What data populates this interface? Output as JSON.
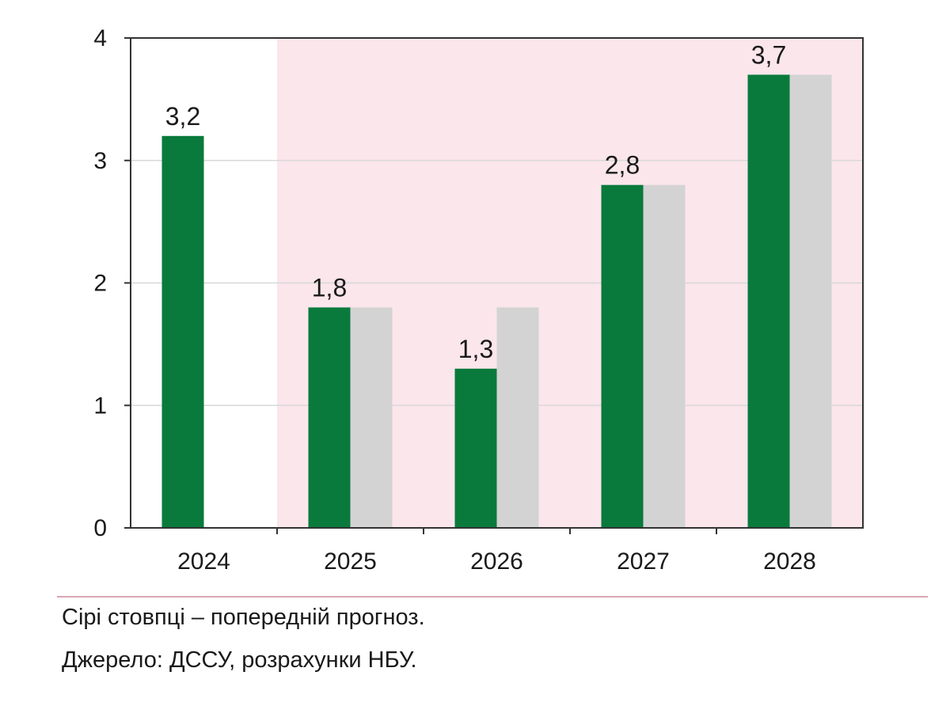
{
  "chart_data": {
    "type": "bar",
    "categories": [
      "2024",
      "2025",
      "2026",
      "2027",
      "2028"
    ],
    "series": [
      {
        "values": [
          3.2,
          1.8,
          1.3,
          2.8,
          3.7
        ],
        "color": "#0a7a3c"
      },
      {
        "values": [
          null,
          1.8,
          1.8,
          2.8,
          3.7
        ],
        "color": "#d3d3d3"
      }
    ],
    "data_labels": [
      "3,2",
      "1,8",
      "1,3",
      "2,8",
      "3,7"
    ],
    "ylim": [
      0,
      4
    ],
    "yticks": [
      "0",
      "1",
      "2",
      "3",
      "4"
    ],
    "forecast_shading": {
      "from_category": "2025",
      "to_category": "2028",
      "color": "#fbe6ec"
    },
    "grid": true,
    "xlabel": "",
    "ylabel": "",
    "title": ""
  },
  "notes": {
    "line1": "Сірі стовпці – попередній прогноз.",
    "line2": "Джерело: ДССУ, розрахунки НБУ."
  },
  "colors": {
    "plot_border": "#333333",
    "grid": "#d8d8d8",
    "divider": "#d9a6b3"
  }
}
